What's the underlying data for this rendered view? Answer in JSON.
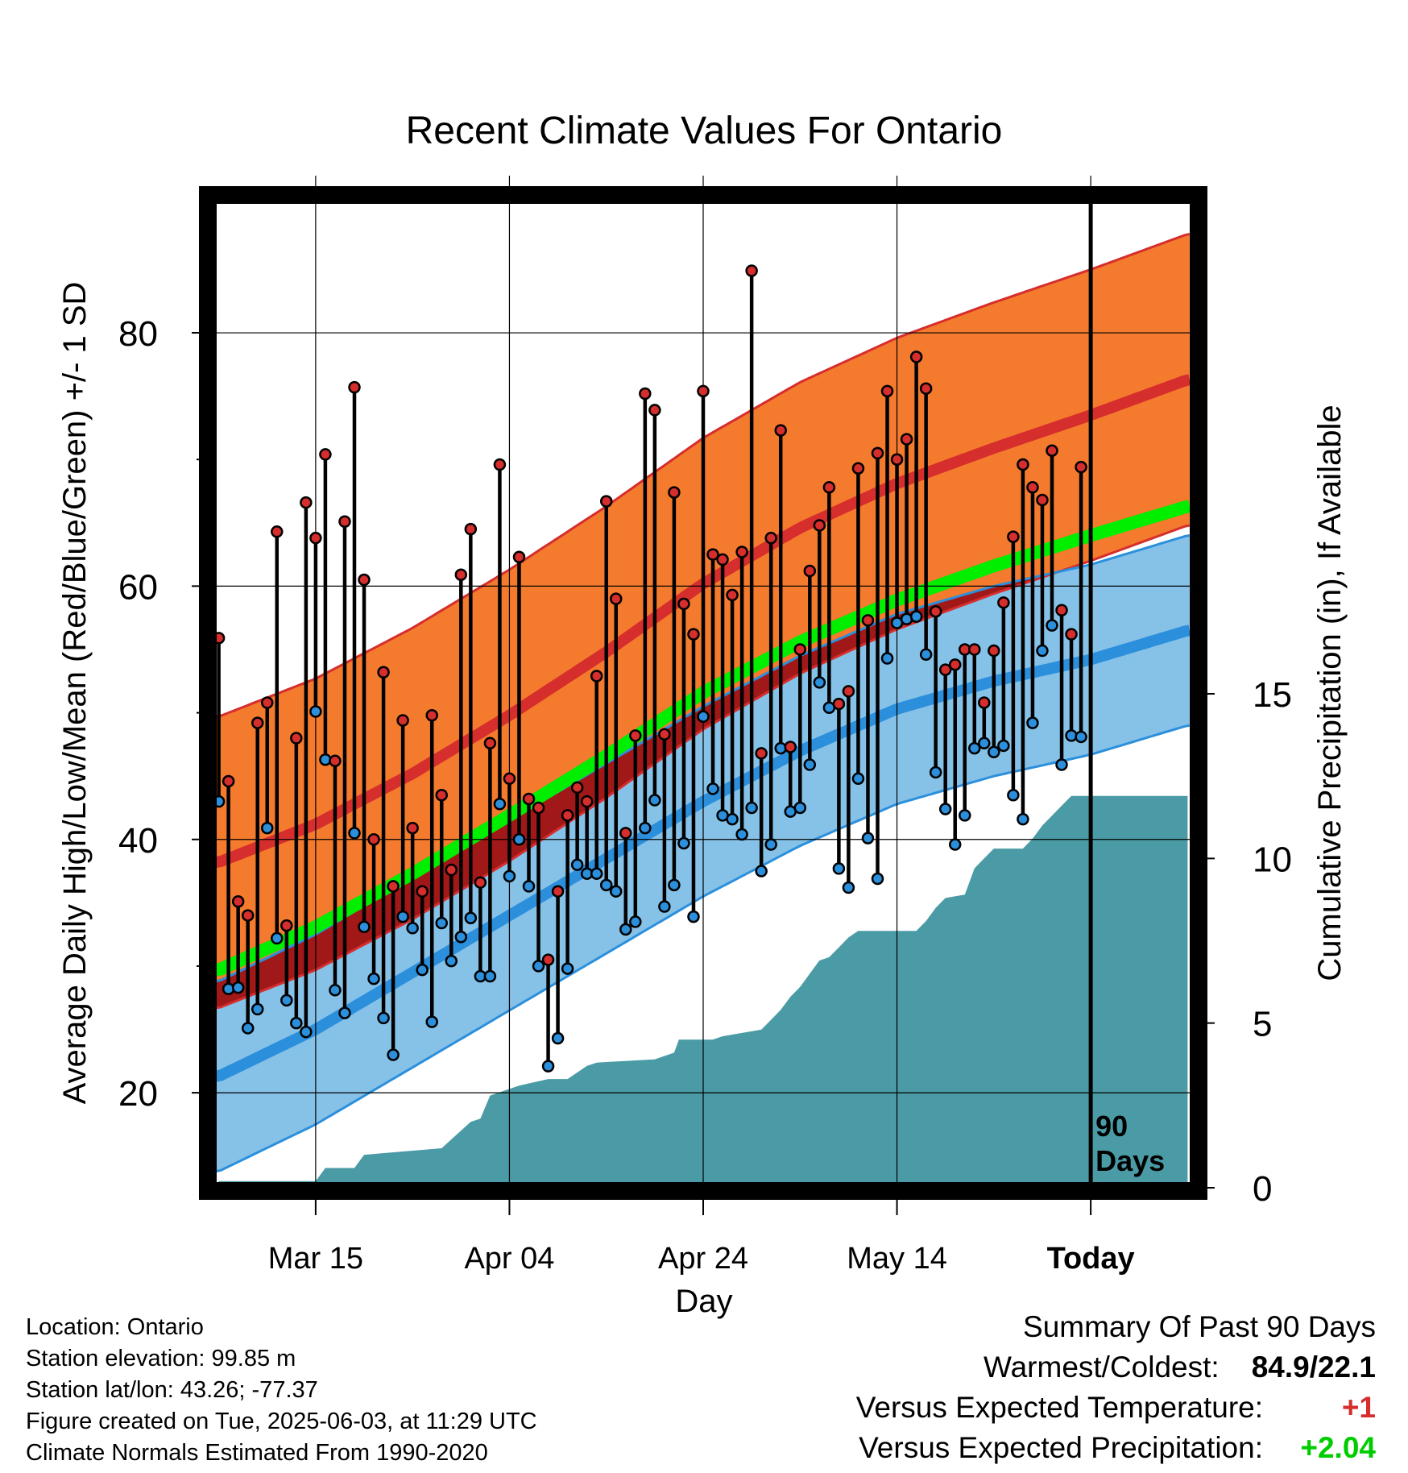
{
  "chart_data": {
    "type": "line",
    "title": "Recent Climate Values For Ontario",
    "xlabel": "Day",
    "ylabel": "Average Daily High/Low/Mean (Red/Blue/Green) +/- 1 SD",
    "y2label": "Cumulative Precipitation (in), If Available",
    "ylim": [
      12.5,
      90.5
    ],
    "y2lim": [
      0,
      30
    ],
    "y_ticks": [
      20,
      40,
      60,
      80
    ],
    "y2_ticks": [
      0,
      5,
      10,
      15
    ],
    "x_tick_labels": [
      "Mar 15",
      "Apr 04",
      "Apr 24",
      "May 14",
      "Today"
    ],
    "x_tick_days": [
      10,
      30,
      50,
      70,
      90
    ],
    "xlim": [
      -0.3,
      100.3
    ],
    "today_marker": {
      "day": 90,
      "label_line1": "90",
      "label_line2": "Days"
    },
    "grid": true,
    "normals": {
      "days": [
        0,
        10,
        20,
        30,
        40,
        50,
        60,
        70,
        80,
        90,
        100
      ],
      "high_mean": [
        38.2,
        41.2,
        45.2,
        49.8,
        54.8,
        60.2,
        64.6,
        68.1,
        70.9,
        73.5,
        76.3
      ],
      "high_sd": 11.5,
      "low_mean": [
        21.3,
        25.0,
        29.5,
        34.0,
        38.5,
        43.0,
        47.0,
        50.3,
        52.5,
        54.2,
        56.5
      ],
      "low_sd": 7.5,
      "mean_mean": [
        29.7,
        33.1,
        37.3,
        41.9,
        46.6,
        51.6,
        55.6,
        58.9,
        61.6,
        64.0,
        66.3
      ]
    },
    "series": [
      {
        "name": "High",
        "color": "#d62d2d",
        "values": [
          55.9,
          44.6,
          35.1,
          34.0,
          49.2,
          50.8,
          64.3,
          33.2,
          48.0,
          66.6,
          63.8,
          70.4,
          46.2,
          65.1,
          75.7,
          60.5,
          40.0,
          53.2,
          36.3,
          49.4,
          40.9,
          35.9,
          49.8,
          43.5,
          37.6,
          60.9,
          64.5,
          36.6,
          47.6,
          69.6,
          44.8,
          62.3,
          43.2,
          42.5,
          30.5,
          35.9,
          41.9,
          44.1,
          43.0,
          52.9,
          66.7,
          59.0,
          40.5,
          48.2,
          75.2,
          73.9,
          48.3,
          67.4,
          58.6,
          56.2,
          75.4,
          62.5,
          62.1,
          59.3,
          62.7,
          84.9,
          46.8,
          63.8,
          72.3,
          47.3,
          55.0,
          61.2,
          64.8,
          67.8,
          50.7,
          51.7,
          69.3,
          57.3,
          70.5,
          75.4,
          70.0,
          71.6,
          78.1,
          75.6,
          58.0,
          53.4,
          53.8,
          55.0,
          55.0,
          50.8,
          54.9,
          58.7,
          63.9,
          69.6,
          67.8,
          66.8,
          70.7,
          58.1,
          56.2,
          69.4
        ],
        "valid": [
          true,
          true,
          true,
          true,
          true,
          true,
          true,
          true,
          true,
          true,
          true,
          true,
          true,
          true,
          true,
          true,
          true,
          true,
          true,
          true,
          true,
          true,
          true,
          true,
          true,
          true,
          true,
          true,
          true,
          true,
          true,
          true,
          true,
          true,
          true,
          true,
          true,
          true,
          true,
          true,
          true,
          true,
          true,
          true,
          true,
          true,
          true,
          true,
          true,
          true,
          true,
          true,
          true,
          true,
          true,
          true,
          true,
          true,
          true,
          true,
          true,
          true,
          true,
          true,
          true,
          true,
          true,
          true,
          true,
          true,
          true,
          true,
          true,
          true,
          true,
          true,
          true,
          true,
          true,
          true,
          true,
          true,
          true,
          true,
          true,
          true,
          true,
          true,
          true,
          true
        ]
      },
      {
        "name": "Low",
        "color": "#2b8fdc",
        "values": [
          43.0,
          28.2,
          28.3,
          25.1,
          26.6,
          40.9,
          32.2,
          27.3,
          25.5,
          24.8,
          50.1,
          46.3,
          28.1,
          26.3,
          40.5,
          33.1,
          29.0,
          25.9,
          23.0,
          33.9,
          33.0,
          29.7,
          25.6,
          33.4,
          30.4,
          32.3,
          33.8,
          29.2,
          29.2,
          42.8,
          37.1,
          40.0,
          36.3,
          30.0,
          22.1,
          24.3,
          29.8,
          38.0,
          37.3,
          37.3,
          36.4,
          35.9,
          32.9,
          33.5,
          40.9,
          43.1,
          34.7,
          36.4,
          39.7,
          33.9,
          49.7,
          44.0,
          41.9,
          41.6,
          40.4,
          42.5,
          37.5,
          39.6,
          47.2,
          42.2,
          42.5,
          45.9,
          52.4,
          50.4,
          37.7,
          36.2,
          44.8,
          40.1,
          36.9,
          54.3,
          57.1,
          57.4,
          57.6,
          54.6,
          45.3,
          42.4,
          39.6,
          41.9,
          47.2,
          47.6,
          46.9,
          47.4,
          43.5,
          41.6,
          49.2,
          54.9,
          56.9,
          45.9,
          48.2,
          48.1
        ],
        "valid": [
          true,
          true,
          true,
          true,
          true,
          true,
          true,
          true,
          true,
          true,
          true,
          true,
          true,
          true,
          true,
          true,
          true,
          true,
          true,
          true,
          true,
          true,
          true,
          true,
          true,
          true,
          true,
          true,
          true,
          true,
          true,
          true,
          true,
          true,
          true,
          true,
          true,
          true,
          true,
          true,
          true,
          true,
          true,
          true,
          true,
          true,
          true,
          true,
          true,
          true,
          true,
          true,
          true,
          true,
          true,
          true,
          true,
          true,
          true,
          true,
          true,
          true,
          true,
          true,
          true,
          true,
          true,
          true,
          true,
          true,
          true,
          true,
          true,
          true,
          true,
          true,
          true,
          true,
          true,
          true,
          true,
          true,
          true,
          true,
          true,
          true,
          true,
          true,
          true,
          true
        ]
      },
      {
        "name": "Cumulative Precipitation",
        "color": "#4a9ba5",
        "days": [
          0,
          10,
          11,
          14,
          15,
          23,
          26,
          27,
          28,
          30,
          31,
          34,
          36,
          38,
          39,
          45,
          47,
          47.5,
          51,
          52,
          54,
          56,
          57,
          58,
          59,
          60,
          61,
          62,
          63,
          64,
          65,
          66,
          67,
          68,
          72,
          73,
          74,
          75,
          77,
          78,
          79,
          80,
          83,
          84,
          85,
          86,
          87,
          88,
          100
        ],
        "values": [
          0.2,
          0.2,
          0.6,
          0.6,
          1.0,
          1.2,
          2.0,
          2.1,
          2.8,
          3.0,
          3.1,
          3.3,
          3.3,
          3.7,
          3.8,
          3.9,
          4.1,
          4.5,
          4.5,
          4.6,
          4.7,
          4.8,
          5.1,
          5.4,
          5.8,
          6.1,
          6.5,
          6.9,
          7.0,
          7.3,
          7.6,
          7.8,
          7.8,
          7.8,
          7.8,
          8.1,
          8.5,
          8.8,
          8.9,
          9.7,
          10.0,
          10.3,
          10.3,
          10.6,
          11.0,
          11.3,
          11.6,
          11.9,
          11.9
        ]
      }
    ]
  },
  "info": {
    "location": "Location: Ontario",
    "elevation": "Station elevation: 99.85 m",
    "latlon": "Station lat/lon: 43.26; -77.37",
    "created": "Figure created on Tue, 2025-06-03, at 11:29 UTC",
    "normals": "Climate Normals Estimated From 1990-2020"
  },
  "summary": {
    "heading": "Summary Of Past 90 Days",
    "warm_cold_label": "Warmest/Coldest:",
    "warm_cold_value": "84.9/22.1",
    "temp_label": "Versus Expected Temperature:",
    "temp_value": "+1",
    "precip_label": "Versus Expected Precipitation:",
    "precip_value": "+2.04"
  },
  "colors": {
    "high_band": "#f47a2e",
    "high_line": "#d62d2d",
    "low_band": "#86c2e8",
    "low_line": "#2b8fdc",
    "mean_line": "#00ee00",
    "overlap": "#a01818",
    "precip": "#4a9ba5",
    "temp_value": "#d62d2d",
    "precip_value": "#00cc00"
  }
}
